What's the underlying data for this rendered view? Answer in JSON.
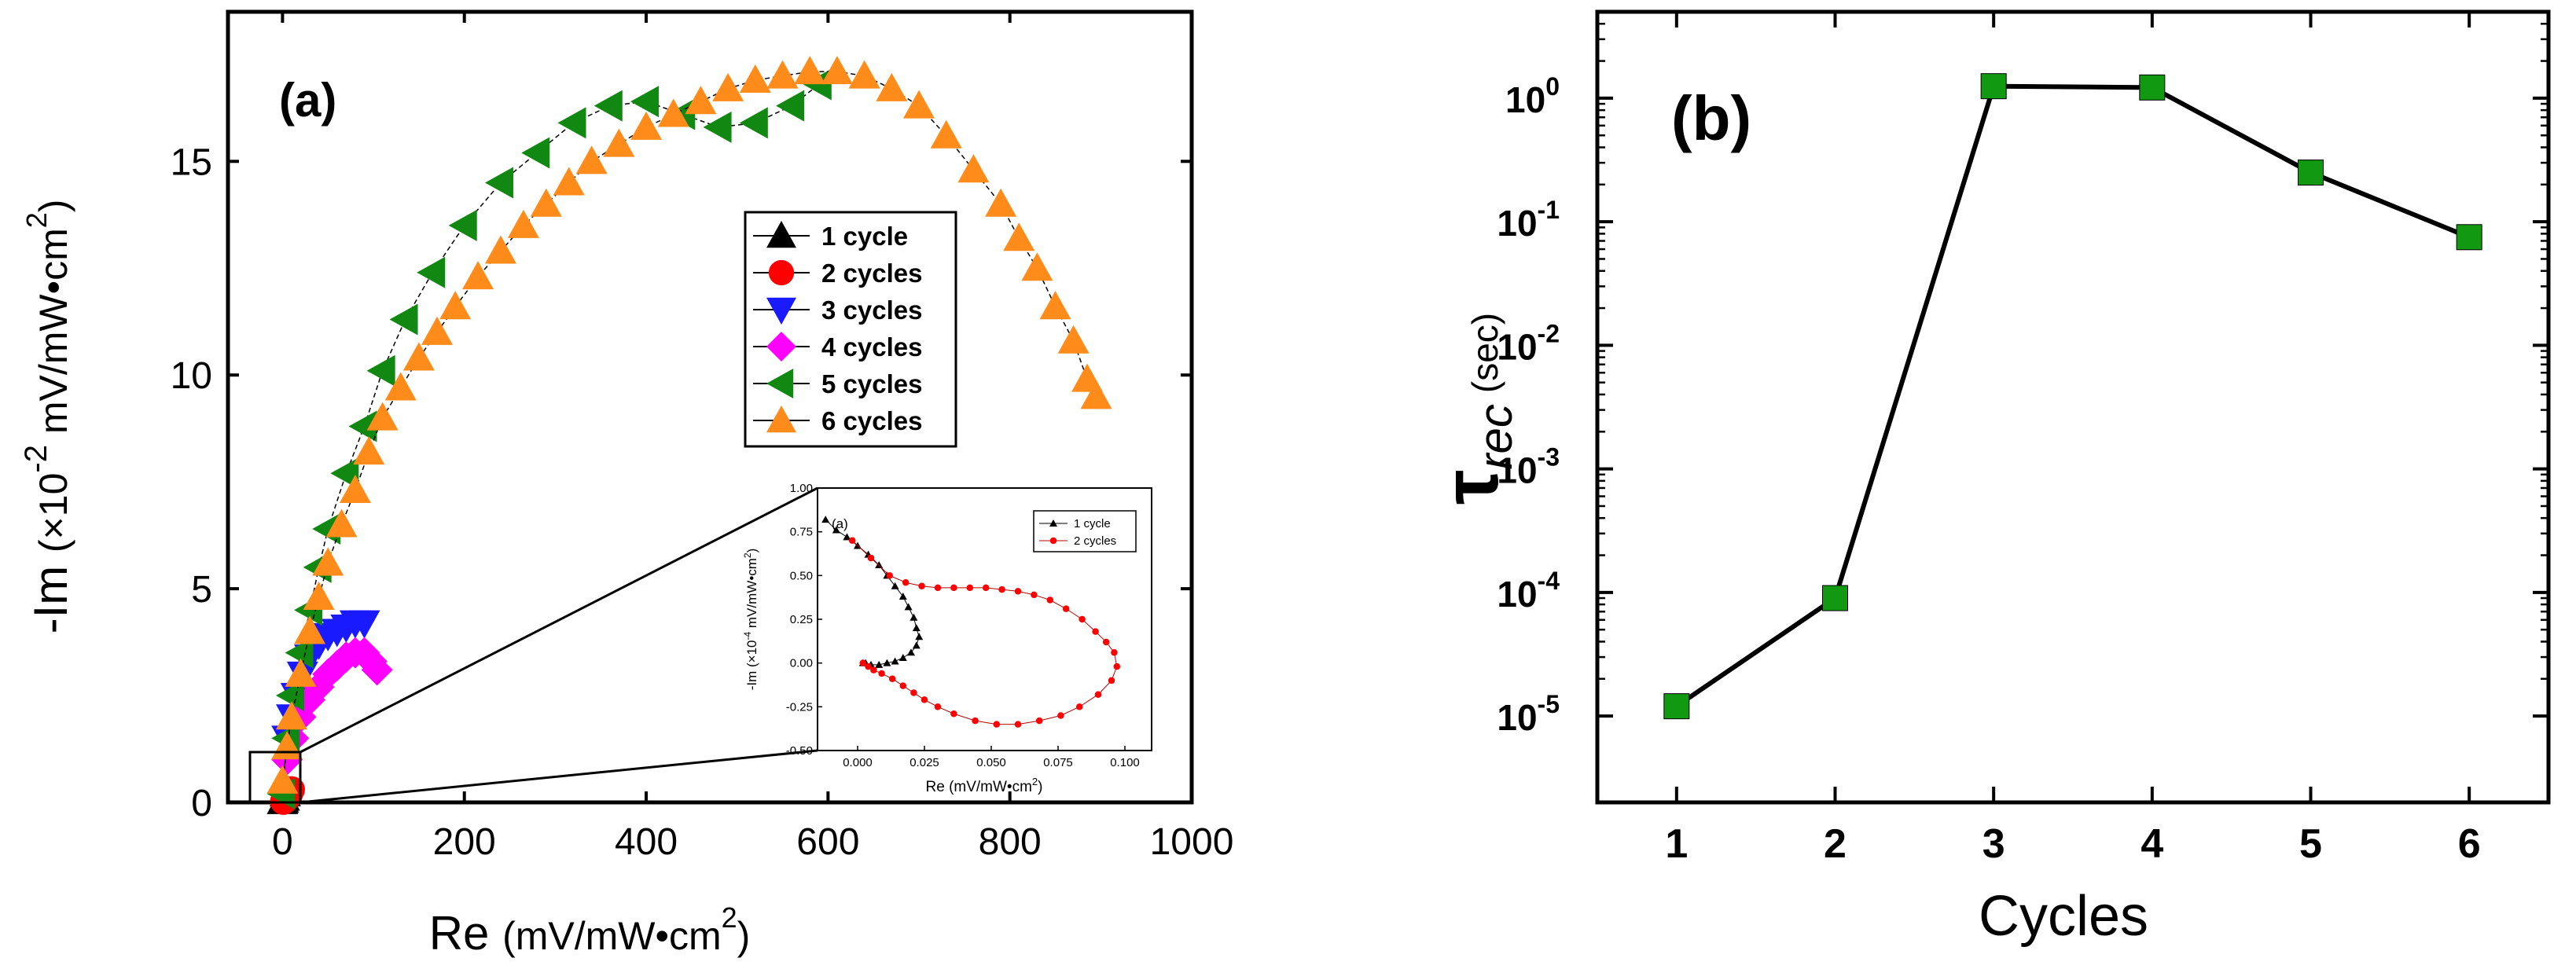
{
  "chart_data": [
    {
      "type": "scatter",
      "panel_label": "(a)",
      "xlabel_main": "Re",
      "xlabel_units": "(mV/mW•cm",
      "xlabel_sup": "2",
      "xlabel_close": ")",
      "ylabel_main": "-Im",
      "ylabel_units_pre": "(×10",
      "ylabel_exp": "-2",
      "ylabel_units": " mV/mW•cm",
      "ylabel_sup": "2",
      "ylabel_close": ")",
      "xlim": [
        -60,
        1000
      ],
      "ylim": [
        0,
        18.5
      ],
      "xticks": [
        0,
        200,
        400,
        600,
        800,
        1000
      ],
      "xtick_labels": [
        "0",
        "200",
        "400",
        "600",
        "800",
        "1000"
      ],
      "yticks": [
        0,
        5,
        10,
        15
      ],
      "ytick_labels": [
        "0",
        "5",
        "10",
        "15"
      ],
      "legend_position": "upper-right",
      "series": [
        {
          "name": "1 cycle",
          "marker": "triangle-up",
          "color": "#000000",
          "x": [
            0,
            1,
            2,
            3,
            4
          ],
          "y": [
            0.02,
            0.05,
            0.1,
            0.2,
            0.3
          ]
        },
        {
          "name": "2 cycles",
          "marker": "circle",
          "color": "#ff0000",
          "x": [
            1,
            3,
            5,
            8,
            10
          ],
          "y": [
            0.02,
            0.05,
            0.1,
            0.2,
            0.3
          ]
        },
        {
          "name": "3 cycles",
          "marker": "triangle-down",
          "color": "#1a1aff",
          "x": [
            5,
            10,
            15,
            22,
            30,
            40,
            50,
            60,
            70,
            80,
            90
          ],
          "y": [
            1.5,
            2.0,
            2.5,
            3.0,
            3.4,
            3.7,
            3.9,
            4.0,
            4.1,
            4.2,
            4.2
          ]
        },
        {
          "name": "4 cycles",
          "marker": "diamond",
          "color": "#ff00ff",
          "x": [
            5,
            12,
            20,
            30,
            40,
            50,
            60,
            70,
            80,
            90,
            98,
            104
          ],
          "y": [
            1.0,
            1.5,
            2.0,
            2.4,
            2.7,
            3.0,
            3.2,
            3.4,
            3.5,
            3.5,
            3.3,
            3.1
          ]
        },
        {
          "name": "5 cycles",
          "marker": "triangle-left",
          "color": "#118811",
          "x": [
            0,
            5,
            10,
            20,
            30,
            40,
            50,
            70,
            90,
            110,
            135,
            165,
            200,
            240,
            280,
            320,
            360,
            400,
            440,
            480,
            520,
            560,
            590
          ],
          "y": [
            0.2,
            1.5,
            2.5,
            3.5,
            4.5,
            5.5,
            6.4,
            7.7,
            8.8,
            10.1,
            11.3,
            12.4,
            13.5,
            14.5,
            15.2,
            15.9,
            16.3,
            16.4,
            16.1,
            15.8,
            15.9,
            16.3,
            16.8
          ]
        },
        {
          "name": "6 cycles",
          "marker": "triangle-up",
          "color": "#ff8c1a",
          "x": [
            0,
            5,
            10,
            20,
            30,
            40,
            50,
            65,
            80,
            95,
            110,
            130,
            150,
            170,
            190,
            215,
            240,
            265,
            290,
            315,
            340,
            370,
            400,
            430,
            460,
            490,
            520,
            550,
            580,
            610,
            640,
            670,
            700,
            730,
            760,
            790,
            810,
            830,
            850,
            870,
            885,
            895
          ],
          "y": [
            0.5,
            1.3,
            2.0,
            3.0,
            4.0,
            4.8,
            5.6,
            6.5,
            7.3,
            8.2,
            9.0,
            9.7,
            10.4,
            11.0,
            11.6,
            12.3,
            12.9,
            13.5,
            14.0,
            14.5,
            15.0,
            15.4,
            15.8,
            16.1,
            16.4,
            16.7,
            16.9,
            17.0,
            17.1,
            17.1,
            17.0,
            16.7,
            16.3,
            15.6,
            14.8,
            14.0,
            13.2,
            12.5,
            11.6,
            10.8,
            9.9,
            9.5
          ]
        }
      ],
      "inset": {
        "panel_label": "(a)",
        "xlabel": "Re (mV/mW•cm",
        "xlabel_sup": "2",
        "xlabel_close": ")",
        "ylabel": "-Im (×10",
        "ylabel_exp": "-4",
        "ylabel_rest": " mV/mW•cm",
        "ylabel_sup": "2",
        "ylabel_close": ")",
        "xlim": [
          -0.015,
          0.11
        ],
        "ylim": [
          -0.5,
          1.0
        ],
        "xticks": [
          0.0,
          0.025,
          0.05,
          0.075,
          0.1
        ],
        "xtick_labels": [
          "0.000",
          "0.025",
          "0.050",
          "0.075",
          "0.100"
        ],
        "yticks": [
          -0.5,
          -0.25,
          0.0,
          0.25,
          0.5,
          0.75,
          1.0
        ],
        "ytick_labels": [
          "-0.50",
          "-0.25",
          "0.00",
          "0.25",
          "0.50",
          "0.75",
          "1.00"
        ],
        "series": [
          {
            "name": "1 cycle",
            "marker": "triangle-up",
            "color": "#000000",
            "x": [
              -0.012,
              -0.008,
              -0.004,
              0.0,
              0.004,
              0.008,
              0.011,
              0.014,
              0.017,
              0.019,
              0.021,
              0.022,
              0.023,
              0.022,
              0.02,
              0.017,
              0.014,
              0.011,
              0.008,
              0.005,
              0.003,
              0.002
            ],
            "y": [
              0.82,
              0.76,
              0.72,
              0.67,
              0.62,
              0.56,
              0.5,
              0.44,
              0.38,
              0.32,
              0.26,
              0.2,
              0.15,
              0.1,
              0.06,
              0.03,
              0.01,
              0.0,
              -0.01,
              -0.01,
              0.0,
              0.0
            ]
          },
          {
            "name": "2 cycles",
            "marker": "circle",
            "color": "#ff0000",
            "x": [
              -0.002,
              0.005,
              0.012,
              0.018,
              0.024,
              0.03,
              0.036,
              0.042,
              0.048,
              0.054,
              0.06,
              0.066,
              0.072,
              0.078,
              0.084,
              0.089,
              0.093,
              0.096,
              0.097,
              0.095,
              0.09,
              0.083,
              0.076,
              0.068,
              0.06,
              0.052,
              0.044,
              0.036,
              0.03,
              0.025,
              0.021,
              0.017,
              0.013,
              0.009,
              0.006,
              0.004,
              0.002
            ],
            "y": [
              0.7,
              0.6,
              0.5,
              0.46,
              0.44,
              0.43,
              0.43,
              0.43,
              0.43,
              0.42,
              0.41,
              0.39,
              0.36,
              0.31,
              0.25,
              0.18,
              0.12,
              0.06,
              -0.02,
              -0.1,
              -0.18,
              -0.25,
              -0.3,
              -0.33,
              -0.35,
              -0.35,
              -0.33,
              -0.29,
              -0.25,
              -0.21,
              -0.17,
              -0.13,
              -0.09,
              -0.06,
              -0.04,
              -0.02,
              0.0
            ]
          }
        ]
      }
    },
    {
      "type": "line",
      "panel_label": "(b)",
      "xlabel": "Cycles",
      "ylabel_symbol": "τ",
      "ylabel_sub": "rec",
      "ylabel_units": "(sec)",
      "x": [
        1,
        2,
        3,
        4,
        5,
        6
      ],
      "y": [
        1.2e-05,
        9e-05,
        1.25,
        1.22,
        0.25,
        0.075
      ],
      "yscale": "log",
      "ylim": [
        2e-06,
        5
      ],
      "xlim": [
        0.5,
        6.5
      ],
      "xticks": [
        1,
        2,
        3,
        4,
        5,
        6
      ],
      "xtick_labels": [
        "1",
        "2",
        "3",
        "4",
        "5",
        "6"
      ],
      "yticks_exp": [
        -5,
        -4,
        -3,
        -2,
        -1,
        0
      ],
      "ytick_base": "10",
      "ytick_exps": [
        "-5",
        "-4",
        "-3",
        "-2",
        "-1",
        "0"
      ],
      "marker": "square",
      "marker_color": "#119911",
      "line_color": "#000000"
    }
  ]
}
